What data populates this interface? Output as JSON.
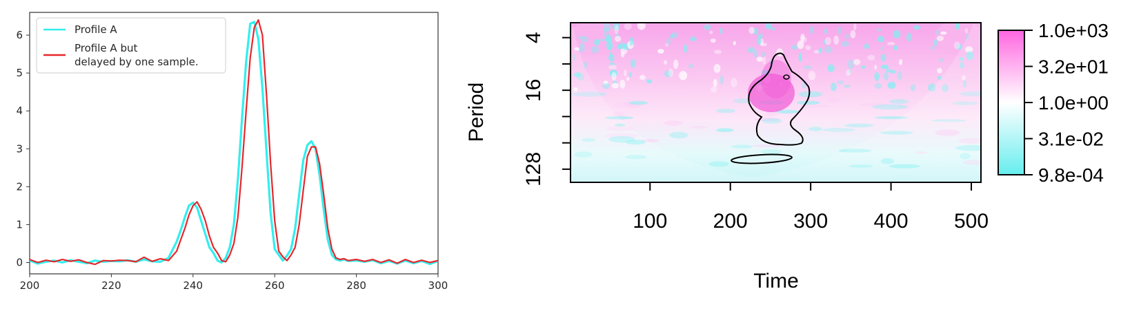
{
  "chart_data": [
    {
      "type": "line",
      "xlim": [
        200,
        300
      ],
      "ylim": [
        -0.3,
        6.6
      ],
      "x_ticks": [
        200,
        220,
        240,
        260,
        280,
        300
      ],
      "y_ticks": [
        0,
        1,
        2,
        3,
        4,
        5,
        6
      ],
      "legend_position": "top-left",
      "series": [
        {
          "name": "Profile A",
          "color": "#33eeee",
          "x": [
            200,
            202,
            204,
            206,
            208,
            210,
            212,
            214,
            216,
            218,
            220,
            222,
            224,
            226,
            228,
            230,
            232,
            234,
            236,
            237,
            238,
            239,
            240,
            241,
            242,
            243,
            244,
            245,
            246,
            247,
            248,
            249,
            250,
            251,
            252,
            253,
            254,
            255,
            256,
            257,
            258,
            259,
            260,
            261,
            262,
            263,
            264,
            265,
            266,
            267,
            268,
            269,
            270,
            271,
            272,
            273,
            274,
            275,
            276,
            277,
            278,
            280,
            282,
            284,
            286,
            288,
            290,
            292,
            294,
            296,
            298,
            300
          ],
          "y": [
            0.05,
            -0.03,
            0.02,
            0.05,
            0.0,
            0.06,
            0.02,
            -0.02,
            0.05,
            0.02,
            0.04,
            0.03,
            0.06,
            0.02,
            0.08,
            0.03,
            0.02,
            0.12,
            0.55,
            0.85,
            1.2,
            1.5,
            1.58,
            1.45,
            1.1,
            0.75,
            0.4,
            0.25,
            0.05,
            0.0,
            0.12,
            0.4,
            1.0,
            2.2,
            3.8,
            5.3,
            6.3,
            6.35,
            5.9,
            4.6,
            2.9,
            1.3,
            0.35,
            0.2,
            0.05,
            0.18,
            0.35,
            0.9,
            1.8,
            2.7,
            3.1,
            3.2,
            3.0,
            2.3,
            1.4,
            0.6,
            0.2,
            0.08,
            0.05,
            0.08,
            0.04,
            0.05,
            0.02,
            0.06,
            -0.02,
            0.04,
            -0.03,
            0.05,
            -0.02,
            0.04,
            -0.04,
            0.04
          ]
        },
        {
          "name": "Profile A but\ndelayed by one sample.",
          "color": "#e6262b",
          "x": [
            200,
            202,
            204,
            206,
            208,
            210,
            212,
            214,
            216,
            218,
            220,
            222,
            224,
            226,
            228,
            230,
            232,
            234,
            236,
            237,
            238,
            239,
            240,
            241,
            242,
            243,
            244,
            245,
            246,
            247,
            248,
            249,
            250,
            251,
            252,
            253,
            254,
            255,
            256,
            257,
            258,
            259,
            260,
            261,
            262,
            263,
            264,
            265,
            266,
            267,
            268,
            269,
            270,
            271,
            272,
            273,
            274,
            275,
            276,
            277,
            278,
            280,
            282,
            284,
            286,
            288,
            290,
            292,
            294,
            296,
            298,
            300
          ],
          "y": [
            0.08,
            0.0,
            0.06,
            0.02,
            0.08,
            0.03,
            0.07,
            0.0,
            -0.05,
            0.05,
            0.04,
            0.06,
            0.05,
            0.02,
            0.14,
            0.03,
            0.1,
            0.05,
            0.3,
            0.6,
            0.9,
            1.25,
            1.5,
            1.6,
            1.4,
            1.1,
            0.7,
            0.4,
            0.25,
            0.05,
            0.02,
            0.2,
            0.5,
            1.2,
            2.5,
            4.0,
            5.4,
            6.2,
            6.4,
            6.0,
            4.4,
            2.6,
            1.1,
            0.3,
            0.15,
            0.05,
            0.2,
            0.4,
            1.0,
            1.9,
            2.8,
            3.05,
            3.05,
            2.6,
            1.8,
            0.9,
            0.35,
            0.12,
            0.08,
            0.1,
            0.05,
            0.08,
            0.03,
            0.08,
            0.0,
            0.07,
            -0.02,
            0.08,
            0.0,
            0.06,
            0.0,
            0.05
          ]
        }
      ]
    },
    {
      "type": "heatmap",
      "xlabel": "Time",
      "ylabel": "Period",
      "xlim": [
        1,
        512
      ],
      "x_ticks": [
        100,
        200,
        300,
        400,
        500
      ],
      "y_ticks": [
        4,
        16,
        128
      ],
      "y_scale": "log2",
      "colorbar": {
        "labels": [
          "1.0e+03",
          "3.2e+01",
          "1.0e+00",
          "3.1e-02",
          "9.8e-04"
        ],
        "colors": [
          "#ff66e0",
          "#ffb3f0",
          "#ffffff",
          "#b3f5f7",
          "#66eeee"
        ]
      }
    }
  ]
}
